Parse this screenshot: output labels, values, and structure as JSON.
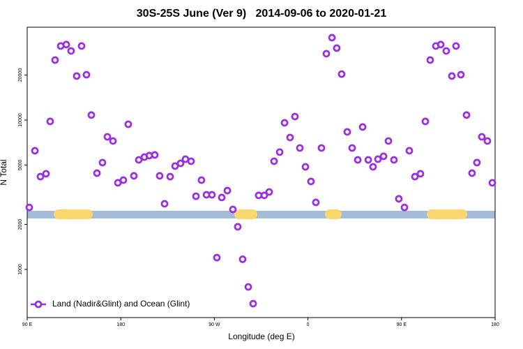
{
  "chart_data": {
    "type": "scatter",
    "title": "30S-25S June (Ver 9)   2014-09-06 to 2020-01-21",
    "x_label": "Longitude (deg E)",
    "y_label": "N Total",
    "log_y": true,
    "legend_position": "lower left",
    "xlim": [
      90,
      540
    ],
    "xticks": [
      {
        "value": 90,
        "label": "90 E"
      },
      {
        "value": 180,
        "label": "180"
      },
      {
        "value": 270,
        "label": "90 W"
      },
      {
        "value": 360,
        "label": "0"
      },
      {
        "value": 450,
        "label": "90 E"
      },
      {
        "value": 540,
        "label": "180"
      }
    ],
    "ylim": [
      476,
      41800
    ],
    "yticks": [
      1000,
      2000,
      5000,
      10000,
      20000
    ],
    "series": [
      {
        "name": "Land (Nadir&Glint) and Ocean (Glint)",
        "color": "#9b30e0",
        "x": [
          92.0,
          97.4,
          102.7,
          108.1,
          112.1,
          116.8,
          122.2,
          127.6,
          132.2,
          137.6,
          142.3,
          147.0,
          151.7,
          157.1,
          162.4,
          167.1,
          172.5,
          177.2,
          182.5,
          187.2,
          192.6,
          197.3,
          202.7,
          207.4,
          212.7,
          217.4,
          222.1,
          227.5,
          232.2,
          237.5,
          242.2,
          247.6,
          252.3,
          257.6,
          262.4,
          267.7,
          272.4,
          277.1,
          282.5,
          287.8,
          292.5,
          297.2,
          302.6,
          307.3,
          312.6,
          318.0,
          322.7,
          327.4,
          332.8,
          337.5,
          342.8,
          347.5,
          352.2,
          357.6,
          362.9,
          367.6,
          373.0,
          377.7,
          383.1,
          387.7,
          392.4,
          397.8,
          402.5,
          407.9,
          412.6,
          418.0,
          422.6,
          427.3,
          432.7,
          437.4,
          442.7,
          447.4,
          452.8,
          457.5,
          462.9,
          468.2,
          472.9,
          477.6,
          483.0,
          487.7,
          493.0,
          498.4,
          502.4,
          507.1,
          512.5,
          517.8,
          522.5,
          527.2,
          532.6,
          537.3
        ],
        "values": [
          2600,
          6230,
          4180,
          4370,
          9790,
          25200,
          31300,
          32000,
          29000,
          19700,
          31300,
          20100,
          10800,
          4410,
          5190,
          7720,
          7240,
          3800,
          3960,
          9370,
          4230,
          5410,
          5650,
          5780,
          5840,
          4230,
          2750,
          4180,
          4920,
          5130,
          5470,
          5300,
          3090,
          3960,
          3160,
          3160,
          1200,
          3030,
          3370,
          2520,
          1930,
          1170,
          764,
          590,
          3130,
          3130,
          3300,
          5300,
          6100,
          9580,
          7640,
          10550,
          6500,
          4860,
          3880,
          2810,
          6500,
          27800,
          35600,
          30300,
          20300,
          8330,
          6500,
          5410,
          8980,
          5410,
          4860,
          5470,
          5720,
          7240,
          5410,
          2970,
          2600,
          6230,
          4180,
          4370,
          9790,
          25200,
          31300,
          32000,
          29000,
          19700,
          31300,
          20100,
          10800,
          4410,
          5190,
          7720,
          7240,
          3800
        ]
      }
    ]
  }
}
